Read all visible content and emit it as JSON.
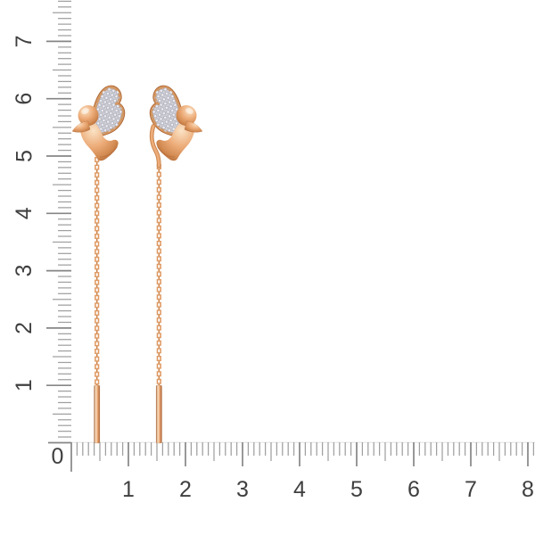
{
  "scene": {
    "background": "#ffffff"
  },
  "rulers": {
    "horizontal": {
      "labels": [
        "0",
        "1",
        "2",
        "3",
        "4",
        "5",
        "6",
        "7",
        "8"
      ]
    },
    "vertical": {
      "labels": [
        "7",
        "6",
        "5",
        "4",
        "3",
        "2",
        "1"
      ]
    }
  },
  "colors": {
    "background": "#ffffff",
    "tick": "#a0a0a0",
    "tick-strong": "#868686",
    "label": "#3f3f3f",
    "baseline": "#e6e6e6",
    "gold-light": "#fae3c6",
    "gold-mid": "#edac79",
    "gold-dark": "#d0884f",
    "gold-deep": "#a86030",
    "bezel": "#d5975f",
    "pave-field": "#cfcfd7",
    "stone": "#efeff4",
    "stone-edge": "#a3a3b1",
    "chain-link": "#df9a63",
    "chain-spine": "#c9854e",
    "chain-hole": "#ffffff"
  }
}
